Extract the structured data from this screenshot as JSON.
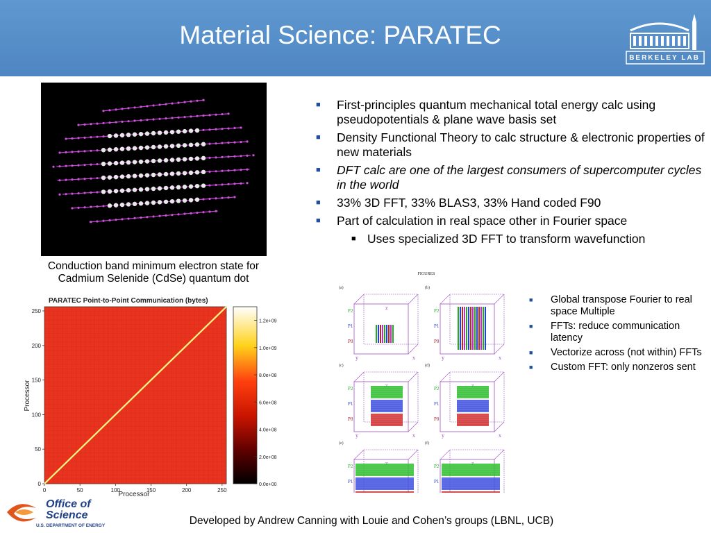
{
  "slide": {
    "title": "Material Science: PARATEC",
    "org_logo_text": "Berkeley Lab"
  },
  "photo": {
    "caption": "Conduction band minimum electron state for Cadmium Selenide (CdSe) quantum dot"
  },
  "bullets": [
    {
      "text": "First-principles quantum mechanical total energy calc using pseudopotentials & plane wave basis set",
      "italic": false
    },
    {
      "text": "Density Functional Theory to calc structure & electronic properties of new materials",
      "italic": false
    },
    {
      "text": "DFT calc are one of the largest consumers of supercomputer cycles in the world",
      "italic": true
    },
    {
      "text": "33% 3D FFT,  33% BLAS3,  33% Hand coded F90",
      "italic": false
    },
    {
      "text": "Part of calculation in real space other in Fourier space",
      "italic": false
    },
    {
      "text": "Uses specialized 3D FFT to transform wavefunction",
      "italic": false,
      "sub": true
    }
  ],
  "side_bullets": [
    "Global transpose Fourier to real space Multiple",
    "FFTs: reduce communication latency",
    "Vectorize across (not within) FFTs",
    "Custom FFT: only nonzeros sent"
  ],
  "chart_data": {
    "type": "heatmap",
    "title": "PARATEC Point-to-Point Communication (bytes)",
    "xlabel": "Processor",
    "ylabel": "Processor",
    "xlim": [
      0,
      256
    ],
    "ylim": [
      0,
      256
    ],
    "x_ticks": [
      0,
      50,
      100,
      150,
      200,
      250
    ],
    "y_ticks": [
      0,
      50,
      100,
      150,
      200,
      250
    ],
    "colorbar_ticks": [
      "0.0e+00",
      "2.0e+08",
      "4.0e+08",
      "6.0e+08",
      "8.0e+08",
      "1.0e+09",
      "1.2e+09"
    ],
    "colorbar_range": [
      0,
      1300000000
    ],
    "background_value": 450000000,
    "diagonal_value": 1250000000
  },
  "figures": {
    "header": "FIGURES",
    "panels": [
      "(a)",
      "(b)",
      "(c)",
      "(d)",
      "(e)",
      "(f)"
    ],
    "axis_labels": [
      "P2",
      "P1",
      "P0",
      "z",
      "y",
      "x"
    ]
  },
  "logos": {
    "office_title": "Office of Science",
    "office_sub": "U.S. DEPARTMENT OF ENERGY"
  },
  "footer": "Developed by Andrew Canning with Louie and Cohen’s groups (LBNL, UCB)",
  "colors": {
    "header_blue": "#5589c5",
    "bullet_blue": "#1f4f9e",
    "heatmap_red": "#e8331f",
    "diagonal_yellow": "#f6e34a"
  }
}
